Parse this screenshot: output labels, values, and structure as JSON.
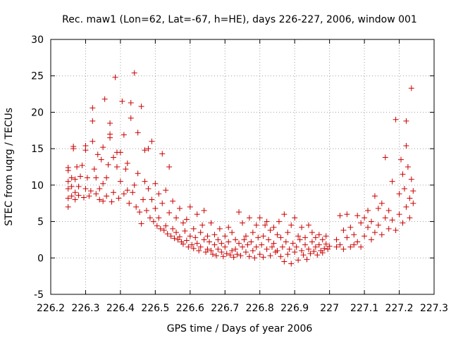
{
  "chart_data": {
    "type": "scatter",
    "title": "Rec. maw1 (Lon=62, Lat=-67, h=HE), days 226-227, 2006, window 001",
    "xlabel": "GPS time / Days of year 2006",
    "ylabel": "STEC from uqrg / TECUs",
    "xlim": [
      226.2,
      227.3
    ],
    "ylim": [
      -5,
      30
    ],
    "xticks": [
      "226.2",
      "226.3",
      "226.4",
      "226.5",
      "226.6",
      "226.7",
      "226.8",
      "226.9",
      "227",
      "227.1",
      "227.2",
      "227.3"
    ],
    "yticks": [
      "-5",
      "0",
      "5",
      "10",
      "15",
      "20",
      "25",
      "30"
    ],
    "grid": true,
    "legend": "none",
    "marker": "plus",
    "color": "#cc0000",
    "points": [
      [
        226.25,
        7.0
      ],
      [
        226.25,
        8.2
      ],
      [
        226.25,
        9.5
      ],
      [
        226.25,
        10.5
      ],
      [
        226.25,
        12.0
      ],
      [
        226.25,
        12.4
      ],
      [
        226.26,
        8.5
      ],
      [
        226.26,
        9.8
      ],
      [
        226.26,
        11.0
      ],
      [
        226.265,
        15.0
      ],
      [
        226.265,
        15.3
      ],
      [
        226.27,
        8.0
      ],
      [
        226.27,
        9.0
      ],
      [
        226.27,
        10.8
      ],
      [
        226.275,
        12.5
      ],
      [
        226.28,
        8.6
      ],
      [
        226.28,
        9.8
      ],
      [
        226.285,
        11.2
      ],
      [
        226.29,
        12.7
      ],
      [
        226.295,
        8.3
      ],
      [
        226.3,
        9.5
      ],
      [
        226.3,
        14.8
      ],
      [
        226.3,
        15.4
      ],
      [
        226.305,
        11.0
      ],
      [
        226.31,
        8.5
      ],
      [
        226.315,
        9.2
      ],
      [
        226.32,
        16.0
      ],
      [
        226.32,
        20.6
      ],
      [
        226.32,
        18.8
      ],
      [
        226.325,
        12.2
      ],
      [
        226.33,
        8.8
      ],
      [
        226.33,
        11.0
      ],
      [
        226.335,
        14.2
      ],
      [
        226.34,
        8.0
      ],
      [
        226.34,
        9.5
      ],
      [
        226.345,
        13.5
      ],
      [
        226.35,
        7.8
      ],
      [
        226.35,
        10.2
      ],
      [
        226.35,
        15.2
      ],
      [
        226.355,
        21.8
      ],
      [
        226.36,
        8.5
      ],
      [
        226.36,
        11.0
      ],
      [
        226.365,
        12.8
      ],
      [
        226.37,
        18.5
      ],
      [
        226.37,
        16.5
      ],
      [
        226.37,
        17.0
      ],
      [
        226.375,
        7.7
      ],
      [
        226.38,
        9.0
      ],
      [
        226.38,
        13.8
      ],
      [
        226.385,
        24.8
      ],
      [
        226.39,
        14.5
      ],
      [
        226.39,
        12.5
      ],
      [
        226.395,
        8.2
      ],
      [
        226.4,
        10.5
      ],
      [
        226.4,
        14.5
      ],
      [
        226.405,
        21.5
      ],
      [
        226.41,
        8.8
      ],
      [
        226.41,
        16.9
      ],
      [
        226.415,
        12.2
      ],
      [
        226.42,
        13.0
      ],
      [
        226.42,
        9.3
      ],
      [
        226.425,
        7.5
      ],
      [
        226.43,
        19.2
      ],
      [
        226.43,
        21.3
      ],
      [
        226.435,
        9.0
      ],
      [
        226.44,
        25.4
      ],
      [
        226.44,
        10.0
      ],
      [
        226.445,
        7.0
      ],
      [
        226.45,
        17.2
      ],
      [
        226.45,
        11.6
      ],
      [
        226.455,
        6.3
      ],
      [
        226.46,
        4.7
      ],
      [
        226.46,
        20.8
      ],
      [
        226.465,
        8.0
      ],
      [
        226.47,
        14.8
      ],
      [
        226.47,
        10.5
      ],
      [
        226.475,
        6.5
      ],
      [
        226.48,
        15.0
      ],
      [
        226.48,
        9.5
      ],
      [
        226.485,
        5.5
      ],
      [
        226.49,
        16.0
      ],
      [
        226.49,
        8.0
      ],
      [
        226.495,
        5.0
      ],
      [
        226.5,
        6.8
      ],
      [
        226.5,
        10.2
      ],
      [
        226.505,
        4.4
      ],
      [
        226.51,
        8.8
      ],
      [
        226.51,
        5.5
      ],
      [
        226.515,
        4.0
      ],
      [
        226.52,
        14.3
      ],
      [
        226.52,
        7.5
      ],
      [
        226.525,
        3.8
      ],
      [
        226.53,
        9.3
      ],
      [
        226.53,
        4.4
      ],
      [
        226.535,
        3.3
      ],
      [
        226.54,
        12.5
      ],
      [
        226.54,
        6.2
      ],
      [
        226.545,
        3.0
      ],
      [
        226.55,
        7.8
      ],
      [
        226.55,
        4.0
      ],
      [
        226.555,
        2.7
      ],
      [
        226.56,
        5.5
      ],
      [
        226.56,
        3.5
      ],
      [
        226.565,
        2.5
      ],
      [
        226.57,
        6.8
      ],
      [
        226.57,
        2.9
      ],
      [
        226.575,
        2.2
      ],
      [
        226.58,
        4.8
      ],
      [
        226.58,
        1.9
      ],
      [
        226.585,
        3.7
      ],
      [
        226.59,
        5.3
      ],
      [
        226.59,
        2.4
      ],
      [
        226.595,
        1.5
      ],
      [
        226.6,
        7.0
      ],
      [
        226.6,
        3.0
      ],
      [
        226.605,
        1.8
      ],
      [
        226.61,
        4.0
      ],
      [
        226.61,
        1.3
      ],
      [
        226.615,
        2.8
      ],
      [
        226.62,
        6.0
      ],
      [
        226.62,
        2.0
      ],
      [
        226.625,
        1.0
      ],
      [
        226.63,
        3.5
      ],
      [
        226.63,
        1.5
      ],
      [
        226.635,
        4.5
      ],
      [
        226.64,
        6.5
      ],
      [
        226.64,
        2.5
      ],
      [
        226.645,
        0.8
      ],
      [
        226.65,
        3.0
      ],
      [
        226.65,
        1.2
      ],
      [
        226.655,
        2.2
      ],
      [
        226.66,
        4.8
      ],
      [
        226.66,
        1.0
      ],
      [
        226.665,
        0.5
      ],
      [
        226.67,
        3.2
      ],
      [
        226.67,
        1.8
      ],
      [
        226.675,
        0.3
      ],
      [
        226.68,
        2.5
      ],
      [
        226.68,
        1.2
      ],
      [
        226.685,
        4.0
      ],
      [
        226.69,
        0.8
      ],
      [
        226.69,
        2.0
      ],
      [
        226.695,
        0.2
      ],
      [
        226.7,
        3.0
      ],
      [
        226.7,
        1.5
      ],
      [
        226.705,
        0.6
      ],
      [
        226.71,
        4.2
      ],
      [
        226.71,
        2.2
      ],
      [
        226.715,
        0.4
      ],
      [
        226.72,
        1.0
      ],
      [
        226.72,
        3.5
      ],
      [
        226.725,
        0.1
      ],
      [
        226.73,
        2.5
      ],
      [
        226.73,
        1.2
      ],
      [
        226.735,
        0.5
      ],
      [
        226.74,
        6.3
      ],
      [
        226.74,
        2.0
      ],
      [
        226.745,
        0.3
      ],
      [
        226.75,
        4.8
      ],
      [
        226.75,
        1.5
      ],
      [
        226.755,
        2.5
      ],
      [
        226.76,
        3.0
      ],
      [
        226.76,
        0.8
      ],
      [
        226.765,
        1.8
      ],
      [
        226.77,
        5.5
      ],
      [
        226.77,
        0.2
      ],
      [
        226.775,
        2.2
      ],
      [
        226.78,
        3.5
      ],
      [
        226.78,
        1.0
      ],
      [
        226.785,
        0.0
      ],
      [
        226.79,
        4.5
      ],
      [
        226.79,
        1.5
      ],
      [
        226.795,
        2.8
      ],
      [
        226.8,
        5.5
      ],
      [
        226.8,
        0.5
      ],
      [
        226.805,
        1.8
      ],
      [
        226.81,
        3.0
      ],
      [
        226.81,
        0.1
      ],
      [
        226.815,
        4.5
      ],
      [
        226.82,
        5.0
      ],
      [
        226.82,
        1.2
      ],
      [
        226.825,
        2.5
      ],
      [
        226.83,
        3.8
      ],
      [
        226.83,
        0.3
      ],
      [
        226.835,
        1.5
      ],
      [
        226.84,
        4.2
      ],
      [
        226.84,
        2.0
      ],
      [
        226.845,
        0.8
      ],
      [
        226.85,
        3.2
      ],
      [
        226.85,
        1.0
      ],
      [
        226.855,
        5.0
      ],
      [
        226.86,
        2.8
      ],
      [
        226.86,
        0.2
      ],
      [
        226.865,
        1.5
      ],
      [
        226.87,
        6.0
      ],
      [
        226.87,
        -0.5
      ],
      [
        226.875,
        2.2
      ],
      [
        226.88,
        3.5
      ],
      [
        226.88,
        0.5
      ],
      [
        226.885,
        1.2
      ],
      [
        226.89,
        4.5
      ],
      [
        226.89,
        -0.8
      ],
      [
        226.895,
        2.0
      ],
      [
        226.9,
        5.5
      ],
      [
        226.9,
        0.8
      ],
      [
        226.905,
        1.5
      ],
      [
        226.91,
        3.0
      ],
      [
        226.91,
        -0.3
      ],
      [
        226.915,
        2.5
      ],
      [
        226.92,
        1.0
      ],
      [
        226.92,
        4.2
      ],
      [
        226.925,
        0.4
      ],
      [
        226.93,
        1.8
      ],
      [
        226.93,
        2.8
      ],
      [
        226.935,
        -0.2
      ],
      [
        226.94,
        4.5
      ],
      [
        226.94,
        1.2
      ],
      [
        226.945,
        0.6
      ],
      [
        226.95,
        2.2
      ],
      [
        226.95,
        3.5
      ],
      [
        226.955,
        0.9
      ],
      [
        226.96,
        1.5
      ],
      [
        226.96,
        2.8
      ],
      [
        226.965,
        0.4
      ],
      [
        226.97,
        1.8
      ],
      [
        226.97,
        3.2
      ],
      [
        226.975,
        1.0
      ],
      [
        226.98,
        2.5
      ],
      [
        226.98,
        0.7
      ],
      [
        226.985,
        1.3
      ],
      [
        226.99,
        1.9
      ],
      [
        226.99,
        3.0
      ],
      [
        226.995,
        1.2
      ],
      [
        227.0,
        1.6
      ],
      [
        227.02,
        1.5
      ],
      [
        227.02,
        2.5
      ],
      [
        227.03,
        5.8
      ],
      [
        227.03,
        1.8
      ],
      [
        227.04,
        3.8
      ],
      [
        227.04,
        1.2
      ],
      [
        227.05,
        6.0
      ],
      [
        227.05,
        2.8
      ],
      [
        227.06,
        1.5
      ],
      [
        227.06,
        4.2
      ],
      [
        227.07,
        3.2
      ],
      [
        227.07,
        1.8
      ],
      [
        227.08,
        5.8
      ],
      [
        227.08,
        2.2
      ],
      [
        227.09,
        4.8
      ],
      [
        227.09,
        1.5
      ],
      [
        227.1,
        5.5
      ],
      [
        227.1,
        3.0
      ],
      [
        227.11,
        4.2
      ],
      [
        227.11,
        6.5
      ],
      [
        227.12,
        2.5
      ],
      [
        227.12,
        5.0
      ],
      [
        227.13,
        8.5
      ],
      [
        227.13,
        3.5
      ],
      [
        227.14,
        6.8
      ],
      [
        227.14,
        4.5
      ],
      [
        227.15,
        7.5
      ],
      [
        227.15,
        3.2
      ],
      [
        227.16,
        5.5
      ],
      [
        227.16,
        13.8
      ],
      [
        227.17,
        4.0
      ],
      [
        227.17,
        6.5
      ],
      [
        227.18,
        10.5
      ],
      [
        227.18,
        5.2
      ],
      [
        227.19,
        3.8
      ],
      [
        227.19,
        19.0
      ],
      [
        227.2,
        8.8
      ],
      [
        227.2,
        6.0
      ],
      [
        227.205,
        13.5
      ],
      [
        227.21,
        11.5
      ],
      [
        227.21,
        4.8
      ],
      [
        227.215,
        9.5
      ],
      [
        227.22,
        15.4
      ],
      [
        227.22,
        18.8
      ],
      [
        227.22,
        7.0
      ],
      [
        227.225,
        12.5
      ],
      [
        227.23,
        8.2
      ],
      [
        227.23,
        5.5
      ],
      [
        227.235,
        23.3
      ],
      [
        227.235,
        10.8
      ],
      [
        227.24,
        9.2
      ],
      [
        227.24,
        7.5
      ]
    ]
  }
}
